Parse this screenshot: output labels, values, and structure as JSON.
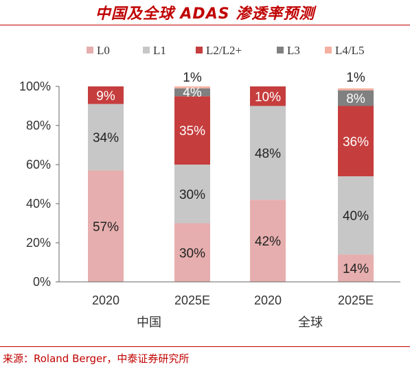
{
  "header": {
    "title": "中国及全球 ADAS 渗透率预测",
    "source": "来源：Roland Berger，中泰证券研究所"
  },
  "colors": {
    "accent": "#c00000",
    "series": [
      "#e6aeae",
      "#c7c7c7",
      "#c63d3d",
      "#808080",
      "#f4b0a0"
    ]
  },
  "chart_data": {
    "type": "bar",
    "stacked": true,
    "categories": [
      "2020",
      "2025E",
      "2020",
      "2025E"
    ],
    "groups": [
      {
        "label": "中国",
        "categories": [
          "2020",
          "2025E"
        ]
      },
      {
        "label": "全球",
        "categories": [
          "2020",
          "2025E"
        ]
      }
    ],
    "series": [
      {
        "name": "L0",
        "values": [
          57,
          30,
          42,
          14
        ]
      },
      {
        "name": "L1",
        "values": [
          34,
          30,
          48,
          40
        ]
      },
      {
        "name": "L2/L2+",
        "values": [
          9,
          35,
          10,
          36
        ]
      },
      {
        "name": "L3",
        "values": [
          0,
          4,
          0,
          8
        ]
      },
      {
        "name": "L4/L5",
        "values": [
          0,
          1,
          0,
          1
        ]
      }
    ],
    "data_labels": [
      [
        "57%",
        "34%",
        "9%",
        "",
        ""
      ],
      [
        "30%",
        "30%",
        "35%",
        "4%",
        "1%"
      ],
      [
        "42%",
        "48%",
        "10%",
        "",
        ""
      ],
      [
        "14%",
        "40%",
        "36%",
        "8%",
        "1%"
      ]
    ],
    "ylim": [
      0,
      100
    ],
    "yticks": [
      "0%",
      "20%",
      "40%",
      "60%",
      "80%",
      "100%"
    ],
    "legend_position": "top",
    "grid": false
  }
}
